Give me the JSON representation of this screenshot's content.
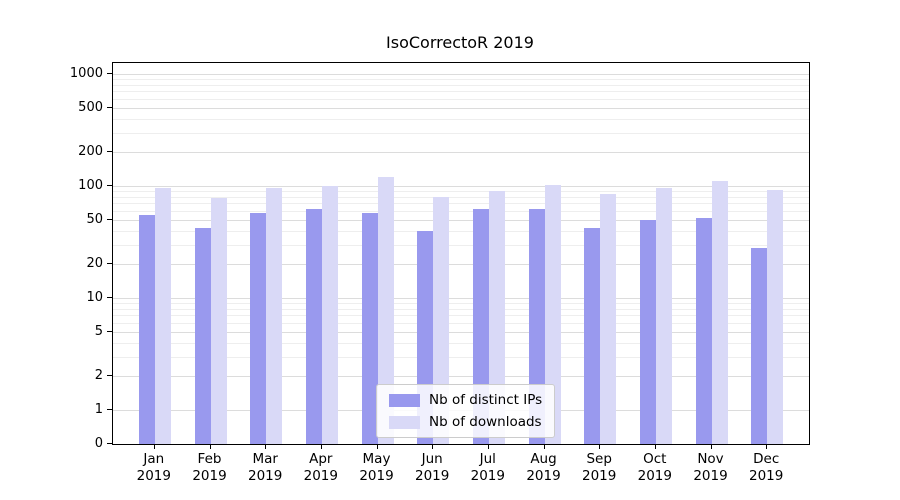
{
  "chart_data": {
    "type": "bar",
    "title": "IsoCorrectoR 2019",
    "year_label": "2019",
    "categories": [
      "Jan",
      "Feb",
      "Mar",
      "Apr",
      "May",
      "Jun",
      "Jul",
      "Aug",
      "Sep",
      "Oct",
      "Nov",
      "Dec"
    ],
    "yticks": [
      0,
      1,
      2,
      5,
      10,
      20,
      50,
      100,
      200,
      500,
      1000
    ],
    "ylim": [
      0,
      1000
    ],
    "yscale": "log-above-1-with-zero-baseline",
    "grid": "horizontal major and minor gridlines",
    "legend_position": "lower center",
    "series": [
      {
        "name": "Nb of distinct IPs",
        "color": "#9999ee",
        "values": [
          55,
          42,
          58,
          62,
          57,
          40,
          63,
          62,
          42,
          50,
          52,
          28
        ]
      },
      {
        "name": "Nb of downloads",
        "color": "#d9d9f7",
        "values": [
          97,
          78,
          97,
          100,
          120,
          80,
          90,
          103,
          85,
          97,
          110,
          93
        ]
      }
    ],
    "colors": {
      "axis": "#000000",
      "grid_major": "#dcdcdc",
      "grid_minor": "#eeeeee",
      "background": "#ffffff"
    }
  }
}
